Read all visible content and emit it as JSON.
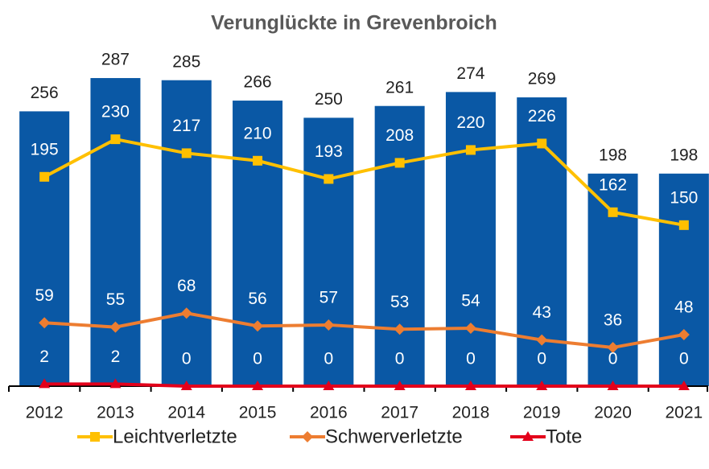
{
  "chart_data": {
    "type": "combo",
    "title": "Verunglückte in Grevenbroich",
    "categories": [
      "2012",
      "2013",
      "2014",
      "2015",
      "2016",
      "2017",
      "2018",
      "2019",
      "2020",
      "2021"
    ],
    "ylim": [
      0,
      320
    ],
    "series": [
      {
        "type": "bar",
        "color": "#0a58a5",
        "values": [
          256,
          287,
          285,
          266,
          250,
          261,
          274,
          269,
          198,
          198
        ]
      },
      {
        "type": "line",
        "name": "Leichtverletzte",
        "color": "#ffc000",
        "marker": "square",
        "values": [
          195,
          230,
          217,
          210,
          193,
          208,
          220,
          226,
          162,
          150
        ]
      },
      {
        "type": "line",
        "name": "Schwerverletzte",
        "color": "#ed7d31",
        "marker": "diamond",
        "values": [
          59,
          55,
          68,
          56,
          57,
          53,
          54,
          43,
          36,
          48
        ]
      },
      {
        "type": "line",
        "name": "Tote",
        "color": "#e3001b",
        "marker": "triangle",
        "values": [
          2,
          2,
          0,
          0,
          0,
          0,
          0,
          0,
          0,
          0
        ]
      }
    ],
    "legend": "bottom"
  }
}
